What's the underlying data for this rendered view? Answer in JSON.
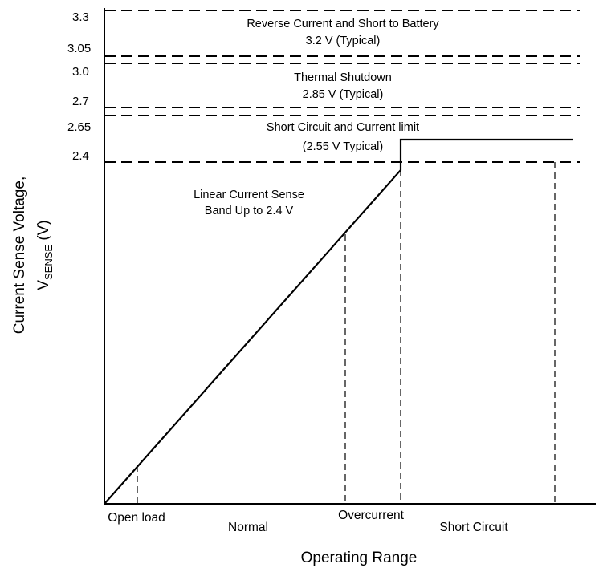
{
  "y_ticks": {
    "t33": "3.3",
    "t305": "3.05",
    "t30": "3.0",
    "t27": "2.7",
    "t265": "2.65",
    "t24": "2.4"
  },
  "bands": {
    "reverse_l1": "Reverse Current and Short to Battery",
    "reverse_l2": "3.2 V (Typical)",
    "thermal_l1": "Thermal Shutdown",
    "thermal_l2": "2.85 V (Typical)",
    "short_l1": "Short Circuit and Current limit",
    "short_l2": "(2.55 V Typical)",
    "linear_l1": "Linear Current Sense",
    "linear_l2": "Band Up to 2.4 V"
  },
  "x_labels": {
    "open_load": "Open load",
    "normal": "Normal",
    "overcurrent": "Overcurrent",
    "short_circuit": "Short Circuit"
  },
  "axes": {
    "x_title": "Operating Range",
    "y_title_l1": "Current Sense Voltage,",
    "y_title_v": "V",
    "y_title_sub": "SENSE",
    "y_title_unit": " (V)"
  }
}
